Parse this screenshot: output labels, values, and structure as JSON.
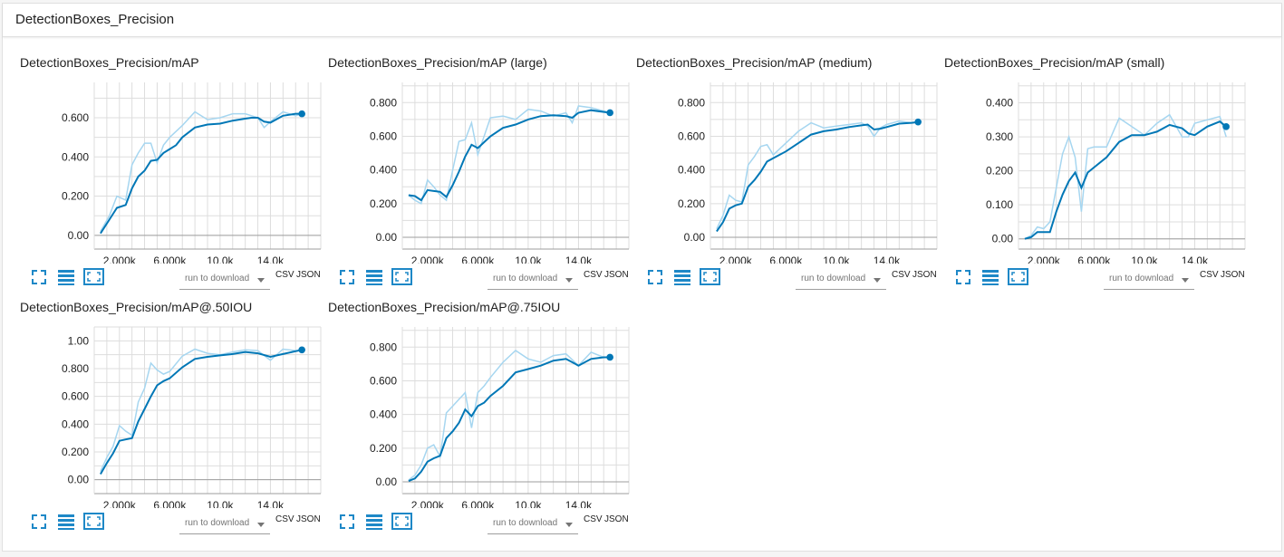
{
  "header": {
    "title": "DetectionBoxes_Precision"
  },
  "toolbar": {
    "run_placeholder": "run to download",
    "csv_label": "CSV",
    "json_label": "JSON"
  },
  "colors": {
    "line": "#0077b6",
    "smooth_raw": "#a6d6f0",
    "grid": "#dddddd",
    "axis": "#9e9e9e"
  },
  "icons": [
    "fit-domain-icon",
    "data-table-icon",
    "expand-icon"
  ],
  "charts": [
    {
      "title": "DetectionBoxes_Precision/mAP",
      "x_ticks": [
        "2.000k",
        "6.000k",
        "10.0k",
        "14.0k"
      ],
      "y_ticks": [
        "0.00",
        "0.200",
        "0.400",
        "0.600"
      ]
    },
    {
      "title": "DetectionBoxes_Precision/mAP (large)",
      "x_ticks": [
        "2.000k",
        "6.000k",
        "10.0k",
        "14.0k"
      ],
      "y_ticks": [
        "0.00",
        "0.200",
        "0.400",
        "0.600",
        "0.800"
      ]
    },
    {
      "title": "DetectionBoxes_Precision/mAP (medium)",
      "x_ticks": [
        "2.000k",
        "6.000k",
        "10.0k",
        "14.0k"
      ],
      "y_ticks": [
        "0.00",
        "0.200",
        "0.400",
        "0.600",
        "0.800"
      ]
    },
    {
      "title": "DetectionBoxes_Precision/mAP (small)",
      "x_ticks": [
        "2.000k",
        "6.000k",
        "10.0k",
        "14.0k"
      ],
      "y_ticks": [
        "0.00",
        "0.100",
        "0.200",
        "0.300",
        "0.400"
      ]
    },
    {
      "title": "DetectionBoxes_Precision/mAP@.50IOU",
      "x_ticks": [
        "2.000k",
        "6.000k",
        "10.0k",
        "14.0k"
      ],
      "y_ticks": [
        "0.00",
        "0.200",
        "0.400",
        "0.600",
        "0.800",
        "1.00"
      ]
    },
    {
      "title": "DetectionBoxes_Precision/mAP@.75IOU",
      "x_ticks": [
        "2.000k",
        "6.000k",
        "10.0k",
        "14.0k"
      ],
      "y_ticks": [
        "0.00",
        "0.200",
        "0.400",
        "0.600",
        "0.800"
      ]
    }
  ],
  "chart_data": [
    {
      "type": "line",
      "title": "DetectionBoxes_Precision/mAP",
      "xlim": [
        0,
        18000
      ],
      "ylim": [
        -0.07,
        0.78
      ],
      "x": [
        500,
        1200,
        1800,
        2500,
        3000,
        3500,
        4000,
        4500,
        5000,
        5500,
        6000,
        6500,
        7000,
        8000,
        9000,
        10000,
        11000,
        12000,
        12500,
        13000,
        13500,
        14000,
        15000,
        16000,
        16500
      ],
      "series": [
        {
          "values": [
            0.01,
            0.08,
            0.14,
            0.155,
            0.24,
            0.3,
            0.33,
            0.38,
            0.385,
            0.42,
            0.44,
            0.46,
            0.5,
            0.55,
            0.565,
            0.57,
            0.585,
            0.595,
            0.6,
            0.6,
            0.58,
            0.575,
            0.61,
            0.62,
            0.62
          ]
        },
        {
          "values": [
            0.02,
            0.1,
            0.2,
            0.18,
            0.36,
            0.42,
            0.47,
            0.47,
            0.37,
            0.46,
            0.5,
            0.53,
            0.56,
            0.63,
            0.59,
            0.6,
            0.62,
            0.62,
            0.61,
            0.6,
            0.55,
            0.58,
            0.63,
            0.61,
            0.62
          ]
        }
      ]
    },
    {
      "type": "line",
      "title": "DetectionBoxes_Precision/mAP (large)",
      "xlim": [
        0,
        18000
      ],
      "ylim": [
        -0.07,
        0.92
      ],
      "x": [
        500,
        1000,
        1500,
        2000,
        2500,
        3000,
        3500,
        4000,
        4500,
        5000,
        5500,
        6000,
        7000,
        8000,
        9000,
        10000,
        11000,
        12000,
        13000,
        13500,
        14000,
        15000,
        16500
      ],
      "series": [
        {
          "values": [
            0.25,
            0.245,
            0.22,
            0.28,
            0.275,
            0.27,
            0.24,
            0.31,
            0.39,
            0.48,
            0.55,
            0.53,
            0.6,
            0.65,
            0.67,
            0.7,
            0.72,
            0.725,
            0.72,
            0.71,
            0.74,
            0.755,
            0.74
          ]
        },
        {
          "values": [
            0.25,
            0.22,
            0.2,
            0.34,
            0.3,
            0.25,
            0.22,
            0.4,
            0.57,
            0.58,
            0.68,
            0.49,
            0.71,
            0.72,
            0.7,
            0.76,
            0.75,
            0.72,
            0.74,
            0.68,
            0.78,
            0.77,
            0.74
          ]
        }
      ]
    },
    {
      "type": "line",
      "title": "DetectionBoxes_Precision/mAP (medium)",
      "xlim": [
        0,
        18000
      ],
      "ylim": [
        -0.07,
        0.92
      ],
      "x": [
        500,
        1000,
        1500,
        2000,
        2500,
        3000,
        3500,
        4000,
        4500,
        5000,
        6000,
        7000,
        8000,
        9000,
        10000,
        11000,
        12000,
        12500,
        13000,
        13500,
        14000,
        15000,
        16000,
        16500
      ],
      "series": [
        {
          "values": [
            0.035,
            0.09,
            0.17,
            0.19,
            0.2,
            0.3,
            0.34,
            0.39,
            0.45,
            0.47,
            0.51,
            0.56,
            0.61,
            0.63,
            0.64,
            0.655,
            0.665,
            0.67,
            0.64,
            0.645,
            0.655,
            0.675,
            0.68,
            0.685
          ]
        },
        {
          "values": [
            0.05,
            0.13,
            0.25,
            0.22,
            0.21,
            0.43,
            0.48,
            0.54,
            0.55,
            0.49,
            0.56,
            0.63,
            0.68,
            0.65,
            0.66,
            0.67,
            0.68,
            0.66,
            0.6,
            0.65,
            0.67,
            0.69,
            0.68,
            0.685
          ]
        }
      ]
    },
    {
      "type": "line",
      "title": "DetectionBoxes_Precision/mAP (small)",
      "xlim": [
        0,
        18000
      ],
      "ylim": [
        -0.03,
        0.46
      ],
      "x": [
        500,
        1000,
        1500,
        2000,
        2500,
        3000,
        3500,
        4000,
        4500,
        5000,
        5500,
        6000,
        7000,
        8000,
        9000,
        10000,
        11000,
        12000,
        13000,
        13500,
        14000,
        15000,
        16000,
        16500
      ],
      "series": [
        {
          "values": [
            0.0,
            0.005,
            0.02,
            0.02,
            0.02,
            0.08,
            0.13,
            0.17,
            0.195,
            0.15,
            0.195,
            0.21,
            0.24,
            0.285,
            0.305,
            0.305,
            0.315,
            0.335,
            0.325,
            0.31,
            0.305,
            0.33,
            0.345,
            0.33
          ]
        },
        {
          "values": [
            0.0,
            0.01,
            0.035,
            0.03,
            0.05,
            0.15,
            0.25,
            0.3,
            0.24,
            0.08,
            0.265,
            0.27,
            0.27,
            0.355,
            0.33,
            0.305,
            0.34,
            0.365,
            0.3,
            0.3,
            0.34,
            0.35,
            0.36,
            0.3
          ]
        }
      ]
    },
    {
      "type": "line",
      "title": "DetectionBoxes_Precision/mAP@.50IOU",
      "xlim": [
        0,
        18000
      ],
      "ylim": [
        -0.1,
        1.1
      ],
      "x": [
        500,
        1000,
        1500,
        2000,
        2500,
        3000,
        3500,
        4000,
        4500,
        5000,
        5500,
        6000,
        7000,
        8000,
        9000,
        10000,
        11000,
        12000,
        13000,
        14000,
        15000,
        16000,
        16500
      ],
      "series": [
        {
          "values": [
            0.04,
            0.12,
            0.19,
            0.28,
            0.29,
            0.3,
            0.42,
            0.51,
            0.6,
            0.68,
            0.71,
            0.73,
            0.81,
            0.87,
            0.885,
            0.895,
            0.905,
            0.92,
            0.91,
            0.885,
            0.905,
            0.925,
            0.935
          ]
        },
        {
          "values": [
            0.06,
            0.16,
            0.24,
            0.39,
            0.35,
            0.32,
            0.56,
            0.66,
            0.84,
            0.79,
            0.76,
            0.78,
            0.89,
            0.94,
            0.91,
            0.9,
            0.92,
            0.935,
            0.93,
            0.86,
            0.94,
            0.93,
            0.935
          ]
        }
      ]
    },
    {
      "type": "line",
      "title": "DetectionBoxes_Precision/mAP@.75IOU",
      "xlim": [
        0,
        18000
      ],
      "ylim": [
        -0.07,
        0.92
      ],
      "x": [
        500,
        1000,
        1500,
        2000,
        2500,
        3000,
        3500,
        4000,
        4500,
        5000,
        5500,
        6000,
        6500,
        7000,
        8000,
        9000,
        10000,
        11000,
        12000,
        13000,
        14000,
        15000,
        16000,
        16500
      ],
      "series": [
        {
          "values": [
            0.005,
            0.02,
            0.06,
            0.12,
            0.14,
            0.155,
            0.26,
            0.3,
            0.35,
            0.43,
            0.39,
            0.45,
            0.47,
            0.51,
            0.57,
            0.65,
            0.67,
            0.69,
            0.72,
            0.73,
            0.69,
            0.73,
            0.74,
            0.74
          ]
        },
        {
          "values": [
            0.01,
            0.04,
            0.1,
            0.2,
            0.22,
            0.15,
            0.41,
            0.45,
            0.49,
            0.53,
            0.32,
            0.53,
            0.57,
            0.62,
            0.71,
            0.78,
            0.73,
            0.71,
            0.75,
            0.76,
            0.69,
            0.77,
            0.74,
            0.74
          ]
        }
      ]
    }
  ]
}
